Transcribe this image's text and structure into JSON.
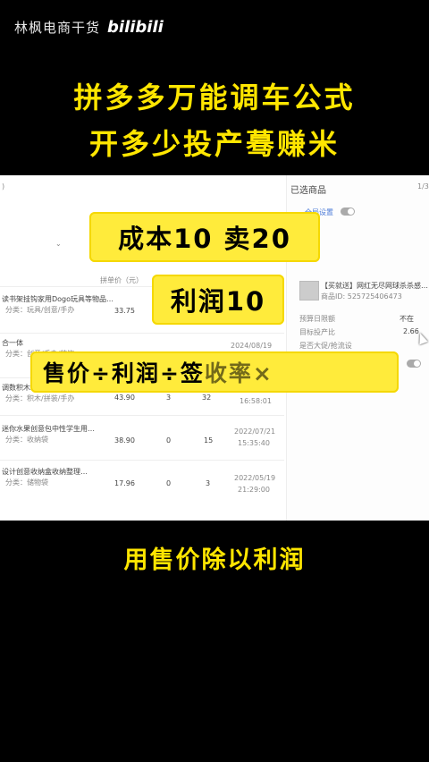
{
  "header": {
    "channel_name": "林枫电商干货",
    "platform_logo": "bilibili"
  },
  "headline": {
    "line1": "拼多多万能调车公式",
    "line2": "开多少投产蓦赚米"
  },
  "panel": {
    "right_title": "已选商品",
    "page_indicator": "1/3",
    "setting_label": "全局设置",
    "price_header": "拼单价（元）",
    "rows": [
      {
        "name": "读书架挂钩家用Dogo玩具等物品…",
        "category": "分类：玩具/创意/手办",
        "price": "33.75",
        "a": "",
        "b": "",
        "date": ""
      },
      {
        "name": "合一体",
        "category": "分类：创意/手办/装饰",
        "price": "",
        "a": "",
        "b": "",
        "date": "2024/08/19"
      },
      {
        "name": "调数积木玩具",
        "category": "分类：积木/拼装/手办",
        "price": "43.90",
        "a": "3",
        "b": "32",
        "date": "16:58:01"
      },
      {
        "name": "迷你水果创意包中性学生用…",
        "category": "分类：收纳袋",
        "price": "38.90",
        "a": "0",
        "b": "15",
        "date": "2022/07/21"
      },
      {
        "name": "设计创意收纳盒收纳整理…",
        "category": "分类：储物袋",
        "price": "17.96",
        "a": "0",
        "b": "3",
        "date": "2022/05/19"
      }
    ],
    "row_times": [
      "15:35:40",
      "21:29:00"
    ],
    "right_item_title": "【买就送】网红无尽网球杀杀感…",
    "right_item_id": "商品ID: 525725406473",
    "right_labels": [
      "预算日限额",
      "目标投产比",
      "是否大促/抢流设"
    ],
    "right_value_hint": "不在",
    "right_value_2": "2.66"
  },
  "overlay": {
    "cost_text": "成本10  卖20",
    "profit_text": "利润10",
    "formula_main": "售价÷利润÷签",
    "formula_faded": "收率×"
  },
  "caption": {
    "bottom": "用售价除以利润"
  },
  "colors": {
    "accent_yellow": "#ffe600",
    "box_yellow": "#ffeb3b",
    "background": "#000000"
  }
}
